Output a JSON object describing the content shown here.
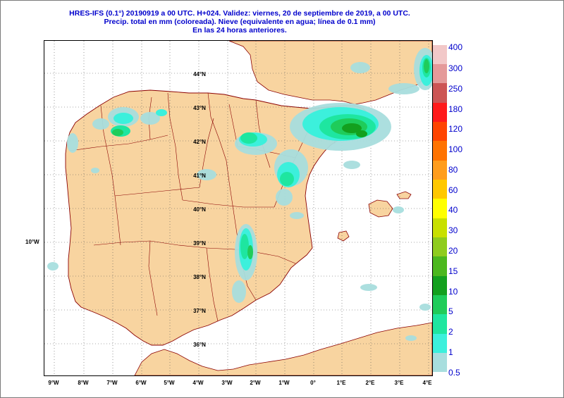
{
  "title": {
    "line1": "HRES-IFS (0.1°) 20190919 a 00 UTC.  H+024. Validez: viernes, 20 de septiembre de 2019,  a  00 UTC.",
    "line2": "Precip. total en mm (coloreada). Nieve (equivalente en agua; línea de 0.1 mm)",
    "line3": "En las 24 horas anteriores."
  },
  "lat_labels": [
    "44°N",
    "43°N",
    "42°N",
    "41°N",
    "40°N",
    "39°N",
    "38°N",
    "37°N",
    "36°N"
  ],
  "lon_labels": [
    "9°W",
    "8°W",
    "7°W",
    "6°W",
    "5°W",
    "4°W",
    "3°W",
    "2°W",
    "1°W",
    "0°",
    "1°E",
    "2°E",
    "3°E",
    "4°E"
  ],
  "side_label": "10°W",
  "legend": {
    "labels": [
      "400",
      "300",
      "250",
      "180",
      "120",
      "100",
      "80",
      "60",
      "40",
      "30",
      "20",
      "15",
      "10",
      "5",
      "2",
      "1",
      "0.5"
    ],
    "colors": [
      "#f2c8c8",
      "#e49a9a",
      "#cc5555",
      "#ff1a1a",
      "#ff4500",
      "#ff7300",
      "#ff9d1e",
      "#ffc800",
      "#ffff00",
      "#c8e000",
      "#8fcc1e",
      "#4cb81e",
      "#13a01e",
      "#1fcc5a",
      "#1ee6a0",
      "#3cf0dc",
      "#a8dede"
    ]
  },
  "colors": {
    "land": "#f8d4a0",
    "sea": "#ffffff",
    "border": "#8b0000",
    "title": "#0000cc",
    "precip_light": "#a8dede",
    "precip_mid": "#3cf0dc",
    "precip_strong": "#1ee6a0",
    "precip_heavy": "#1fcc5a",
    "precip_max": "#13a01e"
  }
}
